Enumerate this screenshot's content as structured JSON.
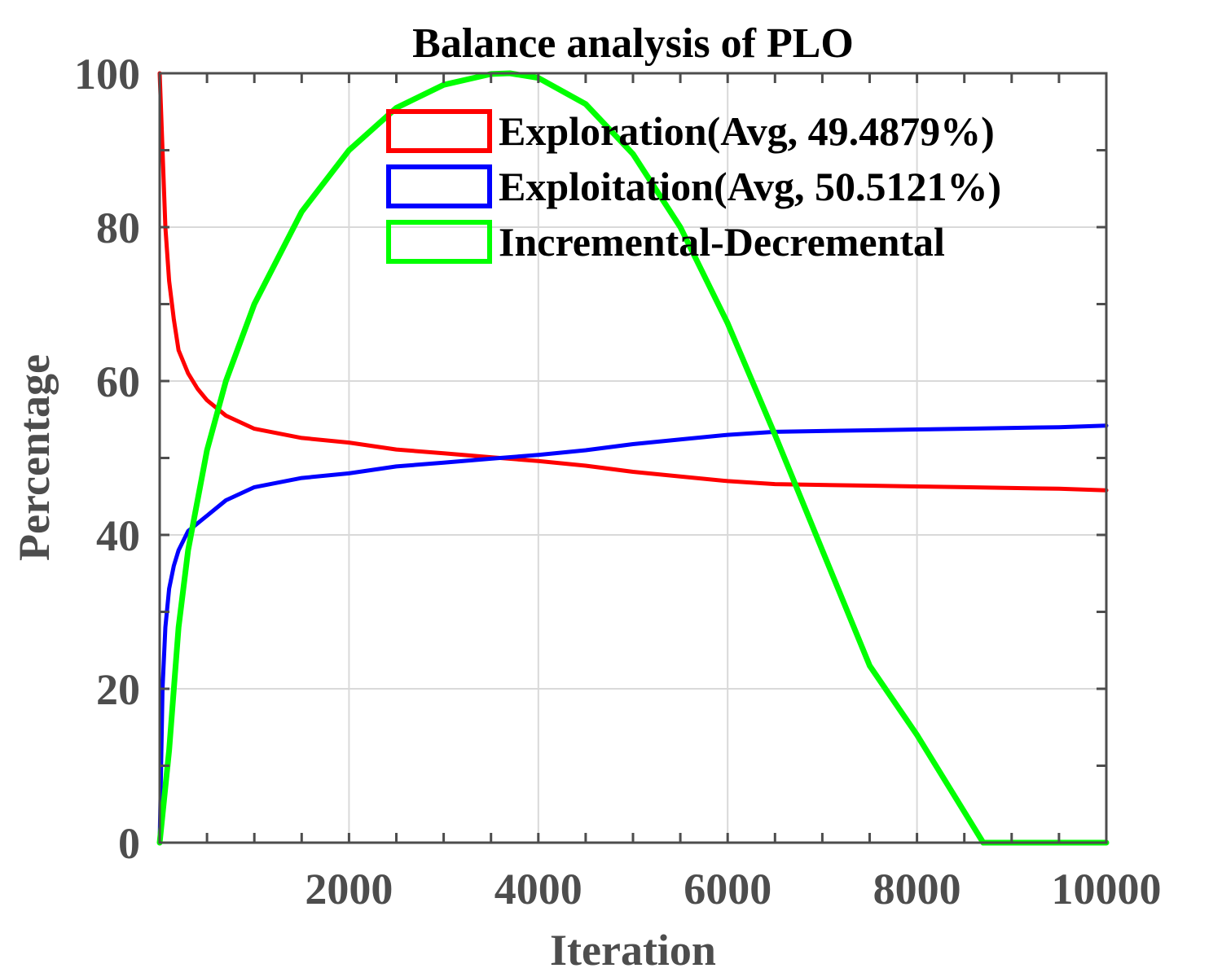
{
  "chart_data": {
    "type": "line",
    "title": "Balance analysis of PLO",
    "xlabel": "Iteration",
    "ylabel": "Percentage",
    "xlim": [
      0,
      10000
    ],
    "ylim": [
      0,
      100
    ],
    "xticks": [
      2000,
      4000,
      6000,
      8000,
      10000
    ],
    "xtick_labels": [
      "2000",
      "4000",
      "6000",
      "8000",
      "10000"
    ],
    "yticks": [
      0,
      20,
      40,
      60,
      80,
      100
    ],
    "ytick_labels": [
      "0",
      "20",
      "40",
      "60",
      "80",
      "100"
    ],
    "grid": true,
    "legend_position": "top-right",
    "series": [
      {
        "name": "Exploration(Avg, 49.4879%)",
        "color": "#ff0000",
        "x": [
          0,
          30,
          60,
          100,
          150,
          200,
          300,
          400,
          500,
          700,
          1000,
          1500,
          2000,
          2500,
          3000,
          3500,
          4000,
          4500,
          5000,
          5500,
          6000,
          6500,
          7000,
          7500,
          8000,
          8500,
          9000,
          9500,
          10000
        ],
        "y": [
          100,
          90,
          80,
          73,
          68,
          64,
          61,
          59,
          57.5,
          55.5,
          53.8,
          52.6,
          52.0,
          51.1,
          50.6,
          50.1,
          49.6,
          49.0,
          48.2,
          47.6,
          47.0,
          46.6,
          46.5,
          46.4,
          46.3,
          46.2,
          46.1,
          46.0,
          45.8
        ]
      },
      {
        "name": "Exploitation(Avg, 50.5121%)",
        "color": "#0000ff",
        "x": [
          0,
          30,
          60,
          100,
          150,
          200,
          300,
          400,
          500,
          700,
          1000,
          1500,
          2000,
          2500,
          3000,
          3500,
          4000,
          4500,
          5000,
          5500,
          6000,
          6500,
          7000,
          7500,
          8000,
          8500,
          9000,
          9500,
          10000
        ],
        "y": [
          0,
          20,
          28,
          33,
          36,
          38,
          40.5,
          41.5,
          42.5,
          44.5,
          46.2,
          47.4,
          48.0,
          48.9,
          49.4,
          49.9,
          50.4,
          51.0,
          51.8,
          52.4,
          53.0,
          53.4,
          53.5,
          53.6,
          53.7,
          53.8,
          53.9,
          54.0,
          54.2
        ]
      },
      {
        "name": "Incremental-Decremental",
        "color": "#00ff00",
        "x": [
          0,
          0,
          100,
          200,
          300,
          500,
          700,
          1000,
          1500,
          2000,
          2500,
          3000,
          3500,
          3700,
          4000,
          4500,
          5000,
          5500,
          6000,
          6500,
          7000,
          7500,
          8000,
          8500,
          8700,
          8700,
          10000
        ],
        "y": [
          0,
          0,
          12,
          28,
          38,
          51,
          60,
          70,
          82,
          90,
          95.5,
          98.5,
          99.9,
          100,
          99.4,
          96,
          89.5,
          80,
          67.5,
          53,
          38,
          23,
          14,
          4,
          0,
          0,
          0
        ]
      }
    ]
  }
}
